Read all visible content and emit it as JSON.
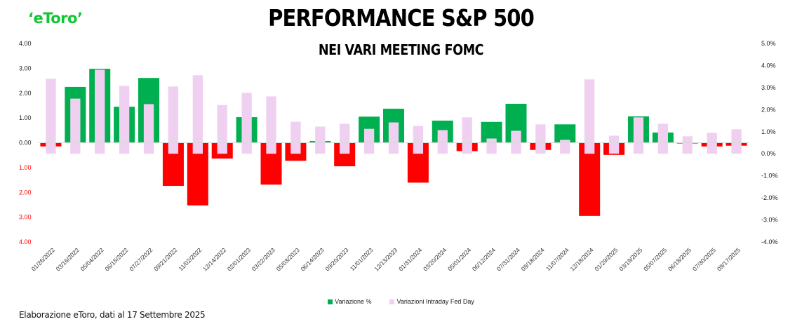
{
  "logo": {
    "text": "‘eToro’",
    "color": "#13c636"
  },
  "header": {
    "title": "PERFORMANCE S&P 500",
    "subtitle": "NEI VARI MEETING FOMC"
  },
  "legend": {
    "items": [
      {
        "label": "Variazione %",
        "color": "#00b050"
      },
      {
        "label": "Variazioni Intraday Fed Day",
        "color": "#f0d0f0"
      }
    ]
  },
  "footer": {
    "text": "Elaborazione eToro, dati al 17 Settembre 2025"
  },
  "chart_data": {
    "type": "bar",
    "title": "PERFORMANCE S&P 500",
    "subtitle": "NEI VARI MEETING FOMC",
    "xlabel": "",
    "ylabel": "",
    "legend_position": "bottom",
    "grid": false,
    "categories": [
      "01/26/2022",
      "03/16/2022",
      "05/04/2022",
      "06/15/2022",
      "07/27/2022",
      "09/21/2022",
      "11/02/2022",
      "12/14/2022",
      "02/01/2023",
      "03/22/2023",
      "05/03/2023",
      "06/14/2023",
      "09/20/2023",
      "11/01/2023",
      "12/13/2023",
      "01/31/2024",
      "03/20/2024",
      "05/01/2024",
      "06/12/2024",
      "07/31/2024",
      "09/18/2024",
      "11/07/2024",
      "12/18/2024",
      "01/29/2025",
      "03/19/2025",
      "05/07/2025",
      "06/18/2025",
      "07/30/2025",
      "09/17/2025"
    ],
    "series": [
      {
        "name": "Variazione %",
        "axis": "left",
        "color_positive": "#00b050",
        "color_negative": "#ff0000",
        "values": [
          -0.15,
          2.25,
          2.98,
          1.45,
          2.61,
          -1.74,
          -2.53,
          -0.64,
          1.03,
          -1.69,
          -0.73,
          0.07,
          -0.95,
          1.05,
          1.37,
          -1.61,
          0.89,
          -0.34,
          0.84,
          1.57,
          -0.29,
          0.74,
          -2.95,
          -0.49,
          1.06,
          0.41,
          -0.03,
          -0.15,
          -0.12
        ]
      },
      {
        "name": "Variazioni Intraday Fed Day",
        "axis": "right",
        "color": "#f0d0f0",
        "values": [
          3.4,
          2.5,
          3.81,
          3.08,
          2.25,
          3.05,
          3.56,
          2.21,
          2.76,
          2.6,
          1.45,
          1.23,
          1.36,
          1.13,
          1.42,
          1.26,
          1.07,
          1.65,
          0.69,
          1.04,
          1.33,
          0.63,
          3.37,
          0.82,
          1.65,
          1.36,
          0.79,
          0.95,
          1.11
        ]
      }
    ],
    "y_left": {
      "range": [
        -4,
        4
      ],
      "ticks": [
        4,
        3,
        2,
        1,
        0,
        -1,
        -2,
        -3,
        -4
      ],
      "tick_labels": [
        "4.00",
        "3.00",
        "2.00",
        "1.00",
        "0.00",
        "1.00",
        "2.00",
        "3.00",
        "4.00"
      ],
      "negative_label_color": "#ff0000"
    },
    "y_right": {
      "range": [
        -4,
        5
      ],
      "ticks": [
        5,
        4,
        3,
        2,
        1,
        0,
        -1,
        -2,
        -3,
        -4
      ],
      "tick_labels": [
        "5.0%",
        "4.0%",
        "3.0%",
        "2.0%",
        "1.0%",
        "0.0%",
        "-1.0%",
        "-2.0%",
        "-3.0%",
        "-4.0%"
      ]
    }
  }
}
